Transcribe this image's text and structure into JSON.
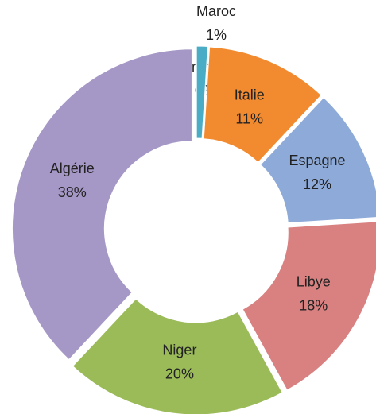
{
  "chart_data": {
    "type": "donut",
    "categories": [
      "France",
      "Maroc",
      "Italie",
      "Espagne",
      "Libye",
      "Niger",
      "Algérie"
    ],
    "values": [
      0,
      1,
      11,
      12,
      18,
      20,
      38
    ],
    "value_labels": [
      "0%",
      "1%",
      "11%",
      "12%",
      "18%",
      "20%",
      "38%"
    ],
    "colors": [
      "#7a5f94",
      "#4bacc6",
      "#f28a30",
      "#8eaad8",
      "#d98080",
      "#9bbb59",
      "#a597c6"
    ]
  }
}
